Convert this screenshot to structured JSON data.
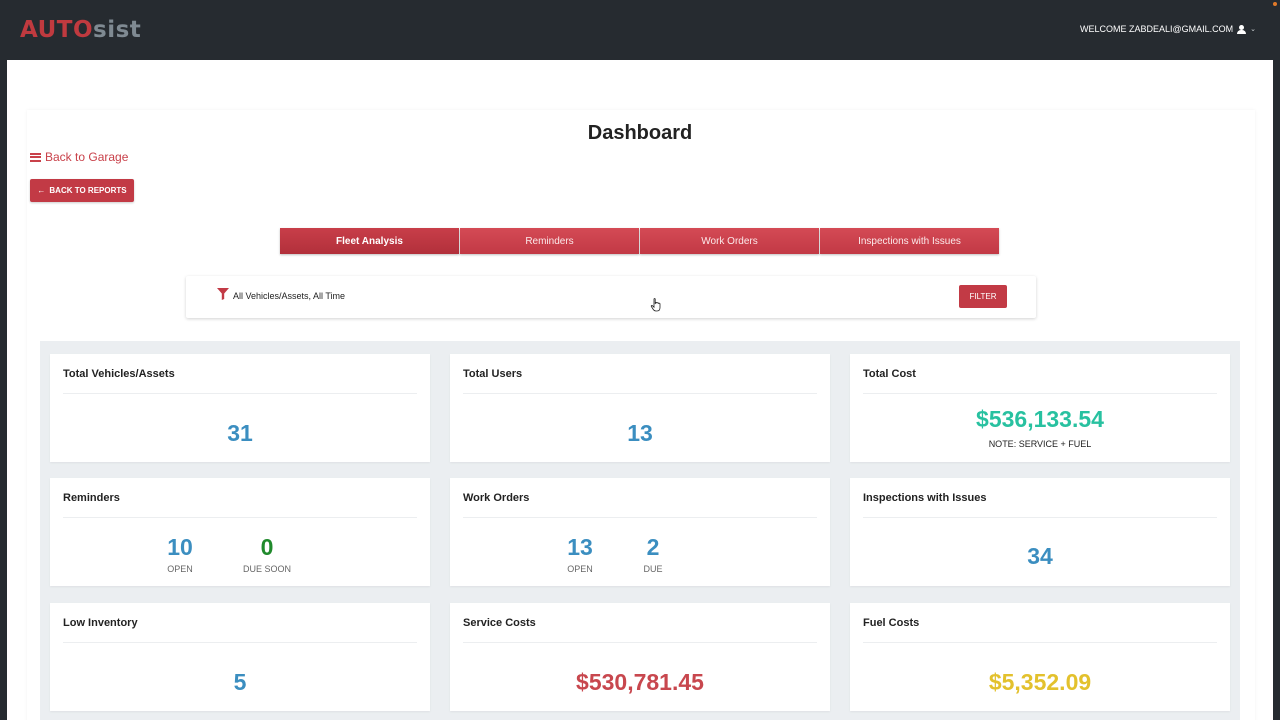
{
  "header": {
    "logo_part1": "AUTO",
    "logo_part2": "sist",
    "welcome": "WELCOME ZABDEALI@GMAIL.COM"
  },
  "page": {
    "title": "Dashboard",
    "back_garage": "Back to Garage",
    "back_reports": "BACK TO REPORTS"
  },
  "tabs": [
    {
      "label": "Fleet Analysis",
      "active": true
    },
    {
      "label": "Reminders",
      "active": false
    },
    {
      "label": "Work Orders",
      "active": false
    },
    {
      "label": "Inspections with Issues",
      "active": false
    }
  ],
  "filter": {
    "text": "All Vehicles/Assets, All Time",
    "button": "FILTER"
  },
  "cards": {
    "total_vehicles": {
      "title": "Total Vehicles/Assets",
      "value": "31"
    },
    "total_users": {
      "title": "Total Users",
      "value": "13"
    },
    "total_cost": {
      "title": "Total Cost",
      "value": "$536,133.54",
      "note": "NOTE: SERVICE + FUEL"
    },
    "reminders": {
      "title": "Reminders",
      "open_value": "10",
      "open_label": "OPEN",
      "due_soon_value": "0",
      "due_soon_label": "DUE SOON"
    },
    "work_orders": {
      "title": "Work Orders",
      "open_value": "13",
      "open_label": "OPEN",
      "due_value": "2",
      "due_label": "DUE"
    },
    "inspections": {
      "title": "Inspections with Issues",
      "value": "34"
    },
    "low_inventory": {
      "title": "Low Inventory",
      "value": "5"
    },
    "service_costs": {
      "title": "Service Costs",
      "value": "$530,781.45"
    },
    "fuel_costs": {
      "title": "Fuel Costs",
      "value": "$5,352.09"
    }
  },
  "colors": {
    "brand_red": "#c23a45",
    "value_blue": "#3b8ec0",
    "value_green": "#208a2c",
    "cost_teal": "#28c1a0",
    "cost_red": "#c8474e",
    "cost_yellow": "#e3c12d"
  }
}
